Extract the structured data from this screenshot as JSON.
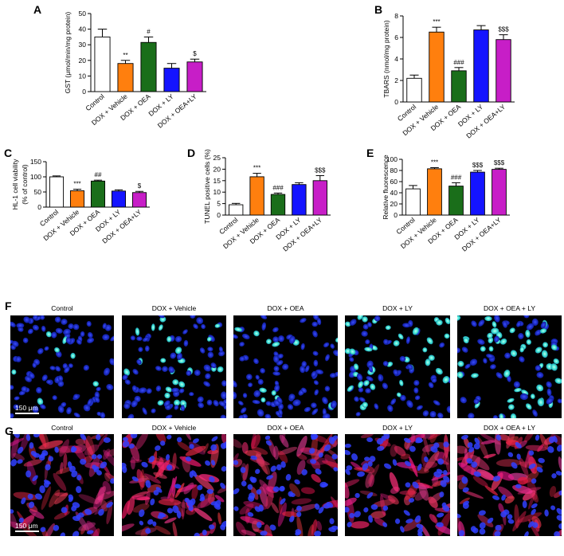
{
  "colors": {
    "Control": "#ffffff",
    "DOX + Vehicle": "#ff7f0e",
    "DOX + OEA": "#1a6e1a",
    "DOX + LY": "#1414ff",
    "DOX + OEA+LY": "#c71ec7"
  },
  "chart_data": [
    {
      "panel": "A",
      "type": "bar",
      "categories": [
        "Control",
        "DOX + Vehicle",
        "DOX + OEA",
        "DOX + LY",
        "DOX + OEA+LY"
      ],
      "values": [
        35,
        18,
        31.5,
        15,
        19
      ],
      "errors": [
        5,
        2,
        3.5,
        3,
        1.8
      ],
      "significance": [
        "",
        "**",
        "#",
        "",
        "$"
      ],
      "ylabel": "GST (μmol/min/mg protein)",
      "ylim": [
        0,
        50
      ],
      "yticks": [
        0,
        10,
        20,
        30,
        40,
        50
      ]
    },
    {
      "panel": "B",
      "type": "bar",
      "categories": [
        "Control",
        "DOX + Vehicle",
        "DOX + OEA",
        "DOX + LY",
        "DOX + OEA+LY"
      ],
      "values": [
        2.2,
        6.5,
        2.9,
        6.7,
        5.8
      ],
      "errors": [
        0.3,
        0.45,
        0.3,
        0.4,
        0.45
      ],
      "significance": [
        "",
        "***",
        "###",
        "",
        "$$$"
      ],
      "ylabel": "TBARS (nmol/mg protein)",
      "ylim": [
        0,
        8
      ],
      "yticks": [
        0,
        2,
        4,
        6,
        8
      ]
    },
    {
      "panel": "C",
      "type": "bar",
      "categories": [
        "Control",
        "DOX + Vehicle",
        "DOX + OEA",
        "DOX + LY",
        "DOX + OEA+LY"
      ],
      "values": [
        100,
        54,
        86,
        53,
        48
      ],
      "errors": [
        3,
        5,
        3,
        4,
        4
      ],
      "significance": [
        "",
        "***",
        "##",
        "",
        "$"
      ],
      "ylabel": [
        "HL-1 cell viability",
        "(% of control)"
      ],
      "ylim": [
        0,
        150
      ],
      "yticks": [
        0,
        50,
        100,
        150
      ]
    },
    {
      "panel": "D",
      "type": "bar",
      "categories": [
        "Control",
        "DOX + Vehicle",
        "DOX + OEA",
        "DOX + LY",
        "DOX + OEA+LY"
      ],
      "values": [
        4.5,
        16.7,
        9,
        13.3,
        15
      ],
      "errors": [
        0.6,
        1.5,
        0.6,
        0.8,
        2.2
      ],
      "significance": [
        "",
        "***",
        "###",
        "",
        "$$$"
      ],
      "ylabel": "TUNEL positive cells (%)",
      "ylim": [
        0,
        25
      ],
      "yticks": [
        0,
        5,
        10,
        15,
        20,
        25
      ]
    },
    {
      "panel": "E",
      "type": "bar",
      "categories": [
        "Control",
        "DOX + Vehicle",
        "DOX + OEA",
        "DOX + LY",
        "DOX + OEA+LY"
      ],
      "values": [
        47,
        83,
        52,
        77,
        82
      ],
      "errors": [
        6,
        2,
        6,
        3,
        2
      ],
      "significance": [
        "",
        "***",
        "###",
        "$$$",
        "$$$"
      ],
      "ylabel": "Relative fluorescence",
      "ylim": [
        0,
        100
      ],
      "yticks": [
        0,
        20,
        40,
        60,
        80,
        100
      ]
    }
  ],
  "image_rows": [
    {
      "panel": "F",
      "labels": [
        "Control",
        "DOX + Vehicle",
        "DOX + OEA",
        "DOX + LY",
        "DOX + OEA + LY"
      ],
      "positive_fraction": [
        0.05,
        0.32,
        0.12,
        0.38,
        0.42
      ],
      "scale_bar": "150 μm"
    },
    {
      "panel": "G",
      "labels": [
        "Control",
        "DOX + Vehicle",
        "DOX + OEA",
        "DOX + LY",
        "DOX + OEA + LY"
      ],
      "red_intensity": [
        0.45,
        0.85,
        0.55,
        0.8,
        0.82
      ],
      "scale_bar": "150 μm"
    }
  ]
}
